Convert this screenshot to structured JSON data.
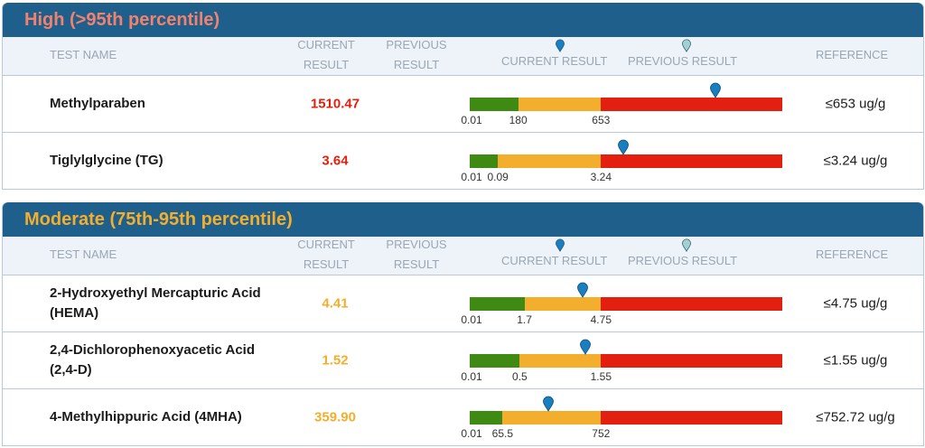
{
  "colors": {
    "header_bg": "#1f5f8c",
    "high_title": "#f2826d",
    "moderate_title": "#f4ae2e",
    "high_value": "#e3200f",
    "moderate_value": "#f4ae2e",
    "current_pin": "#1a7fbf",
    "previous_pin": "#a6cfcd"
  },
  "columns": {
    "test_name": "TEST NAME",
    "current_1": "CURRENT",
    "current_2": "RESULT",
    "previous_1": "PREVIOUS",
    "previous_2": "RESULT",
    "legend_current": "CURRENT RESULT",
    "legend_previous": "PREVIOUS RESULT",
    "reference": "REFERENCE"
  },
  "sections": [
    {
      "title": "High (>95th percentile)",
      "level": "high",
      "rows": [
        {
          "name": "Methylparaben",
          "value": "1510.47",
          "ticks": [
            "0.01",
            "180",
            "653"
          ],
          "green_frac": 0.155,
          "yellow_frac": 0.265,
          "marker_frac": 0.785,
          "reference": "≤653 ug/g"
        },
        {
          "name": "Tiglylglycine (TG)",
          "value": "3.64",
          "ticks": [
            "0.01",
            "0.09",
            "3.24"
          ],
          "green_frac": 0.09,
          "yellow_frac": 0.33,
          "marker_frac": 0.49,
          "reference": "≤3.24 ug/g"
        }
      ]
    },
    {
      "title": "Moderate (75th-95th percentile)",
      "level": "moderate",
      "rows": [
        {
          "name": "2-Hydroxyethyl Mercapturic Acid (HEMA)",
          "value": "4.41",
          "ticks": [
            "0.01",
            "1.7",
            "4.75"
          ],
          "green_frac": 0.175,
          "yellow_frac": 0.245,
          "marker_frac": 0.36,
          "reference": "≤4.75 ug/g"
        },
        {
          "name": "2,4-Dichlorophenoxyacetic Acid (2,4-D)",
          "value": "1.52",
          "ticks": [
            "0.01",
            "0.5",
            "1.55"
          ],
          "green_frac": 0.16,
          "yellow_frac": 0.26,
          "marker_frac": 0.37,
          "reference": "≤1.55 ug/g"
        },
        {
          "name": "4-Methylhippuric Acid (4MHA)",
          "value": "359.90",
          "ticks": [
            "0.01",
            "65.5",
            "752"
          ],
          "green_frac": 0.105,
          "yellow_frac": 0.315,
          "marker_frac": 0.25,
          "reference": "≤752.72 ug/g"
        }
      ]
    }
  ]
}
